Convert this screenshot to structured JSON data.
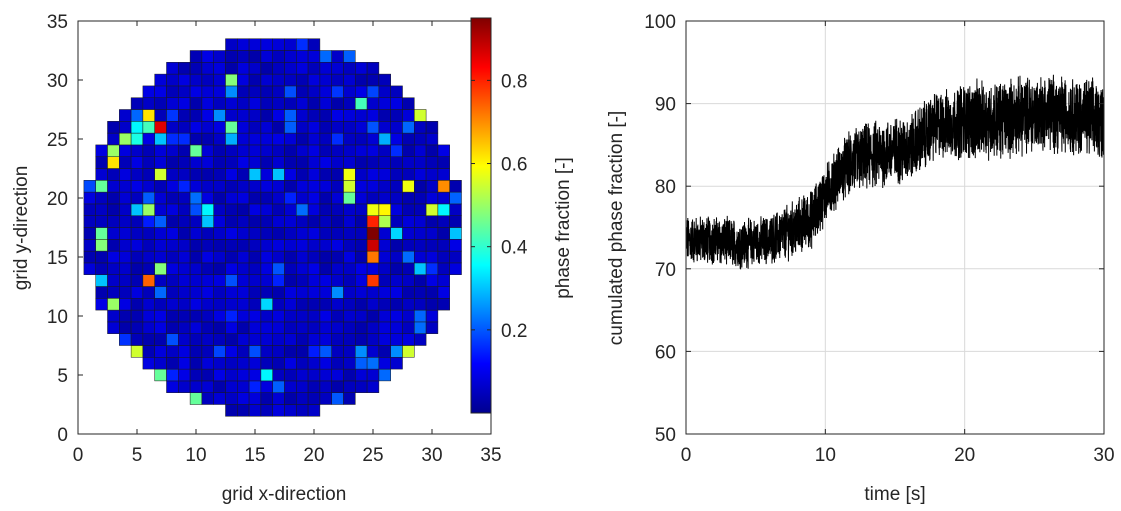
{
  "chart_data": [
    {
      "type": "heatmap",
      "xlabel": "grid x-direction",
      "ylabel": "grid y-direction",
      "xlim": [
        0,
        35
      ],
      "ylim": [
        0,
        35
      ],
      "xticks": [
        "0",
        "5",
        "10",
        "15",
        "20",
        "25",
        "30",
        "35"
      ],
      "yticks": [
        "0",
        "5",
        "10",
        "15",
        "20",
        "25",
        "30",
        "35"
      ],
      "colorbar": {
        "label": "phase fraction [-]",
        "range": [
          0,
          0.95
        ],
        "colormap": "jet",
        "ticks": [
          "0.2",
          "0.4",
          "0.6",
          "0.8"
        ]
      },
      "grid_cells": {
        "shape": "circular",
        "center": [
          16.5,
          17.5
        ],
        "radius": 16
      },
      "background_value": 0.07,
      "highlighted_cells": [
        {
          "x": 25,
          "y": 17,
          "v": 0.95
        },
        {
          "x": 25,
          "y": 16,
          "v": 0.88
        },
        {
          "x": 25,
          "y": 18,
          "v": 0.8
        },
        {
          "x": 25,
          "y": 15,
          "v": 0.72
        },
        {
          "x": 25,
          "y": 13,
          "v": 0.78
        },
        {
          "x": 7,
          "y": 26,
          "v": 0.86
        },
        {
          "x": 6,
          "y": 13,
          "v": 0.74
        },
        {
          "x": 31,
          "y": 21,
          "v": 0.7
        },
        {
          "x": 3,
          "y": 23,
          "v": 0.62
        },
        {
          "x": 3,
          "y": 24,
          "v": 0.5
        },
        {
          "x": 23,
          "y": 22,
          "v": 0.58
        },
        {
          "x": 23,
          "y": 21,
          "v": 0.55
        },
        {
          "x": 25,
          "y": 19,
          "v": 0.58
        },
        {
          "x": 26,
          "y": 19,
          "v": 0.6
        },
        {
          "x": 26,
          "y": 18,
          "v": 0.52
        },
        {
          "x": 28,
          "y": 21,
          "v": 0.58
        },
        {
          "x": 30,
          "y": 19,
          "v": 0.55
        },
        {
          "x": 6,
          "y": 27,
          "v": 0.62
        },
        {
          "x": 6,
          "y": 26,
          "v": 0.42
        },
        {
          "x": 4,
          "y": 25,
          "v": 0.5
        },
        {
          "x": 2,
          "y": 21,
          "v": 0.45
        },
        {
          "x": 2,
          "y": 17,
          "v": 0.45
        },
        {
          "x": 2,
          "y": 16,
          "v": 0.48
        },
        {
          "x": 3,
          "y": 11,
          "v": 0.5
        },
        {
          "x": 5,
          "y": 7,
          "v": 0.55
        },
        {
          "x": 6,
          "y": 19,
          "v": 0.5
        },
        {
          "x": 7,
          "y": 14,
          "v": 0.48
        },
        {
          "x": 7,
          "y": 5,
          "v": 0.45
        },
        {
          "x": 10,
          "y": 3,
          "v": 0.45
        },
        {
          "x": 13,
          "y": 30,
          "v": 0.48
        },
        {
          "x": 13,
          "y": 26,
          "v": 0.45
        },
        {
          "x": 24,
          "y": 28,
          "v": 0.42
        },
        {
          "x": 29,
          "y": 27,
          "v": 0.55
        },
        {
          "x": 28,
          "y": 7,
          "v": 0.55
        },
        {
          "x": 23,
          "y": 20,
          "v": 0.45
        },
        {
          "x": 7,
          "y": 22,
          "v": 0.55
        },
        {
          "x": 10,
          "y": 24,
          "v": 0.45
        },
        {
          "x": 16,
          "y": 5,
          "v": 0.35
        },
        {
          "x": 5,
          "y": 26,
          "v": 0.35
        },
        {
          "x": 5,
          "y": 25,
          "v": 0.38
        },
        {
          "x": 7,
          "y": 25,
          "v": 0.3
        },
        {
          "x": 11,
          "y": 19,
          "v": 0.35
        },
        {
          "x": 11,
          "y": 18,
          "v": 0.3
        },
        {
          "x": 16,
          "y": 11,
          "v": 0.32
        },
        {
          "x": 17,
          "y": 22,
          "v": 0.3
        },
        {
          "x": 15,
          "y": 22,
          "v": 0.3
        },
        {
          "x": 31,
          "y": 19,
          "v": 0.35
        },
        {
          "x": 32,
          "y": 17,
          "v": 0.3
        },
        {
          "x": 27,
          "y": 17,
          "v": 0.32
        },
        {
          "x": 29,
          "y": 14,
          "v": 0.3
        },
        {
          "x": 5,
          "y": 19,
          "v": 0.3
        },
        {
          "x": 2,
          "y": 13,
          "v": 0.3
        },
        {
          "x": 26,
          "y": 25,
          "v": 0.28
        },
        {
          "x": 13,
          "y": 25,
          "v": 0.28
        },
        {
          "x": 12,
          "y": 27,
          "v": 0.25
        },
        {
          "x": 27,
          "y": 7,
          "v": 0.25
        },
        {
          "x": 24,
          "y": 7,
          "v": 0.25
        },
        {
          "x": 10,
          "y": 20,
          "v": 0.22
        },
        {
          "x": 22,
          "y": 12,
          "v": 0.25
        },
        {
          "x": 13,
          "y": 29,
          "v": 0.25
        }
      ]
    },
    {
      "type": "line",
      "xlabel": "time [s]",
      "ylabel": "cumulated phase fraction [-]",
      "xlim": [
        0,
        30
      ],
      "ylim": [
        50,
        100
      ],
      "xticks": [
        "0",
        "10",
        "20",
        "30"
      ],
      "yticks": [
        "50",
        "60",
        "70",
        "80",
        "90",
        "100"
      ],
      "grid": true,
      "line_color": "#000000",
      "series": [
        {
          "x": [
            0,
            2,
            4,
            6,
            8,
            9,
            10,
            11,
            12,
            14,
            16,
            17,
            18,
            19,
            20,
            22,
            24,
            26,
            28,
            30
          ],
          "y": [
            73.5,
            73.5,
            73,
            73.5,
            75,
            76,
            79,
            81.5,
            83,
            84,
            84.5,
            86,
            87.5,
            87.5,
            88,
            88,
            88.5,
            89,
            88.5,
            88
          ],
          "noise_amplitude": [
            2.5,
            2.5,
            2.5,
            2.5,
            3,
            3,
            3,
            3,
            3.5,
            3.5,
            3.5,
            3.5,
            3.5,
            3.5,
            4,
            4,
            4,
            4,
            4,
            4
          ]
        }
      ]
    }
  ]
}
